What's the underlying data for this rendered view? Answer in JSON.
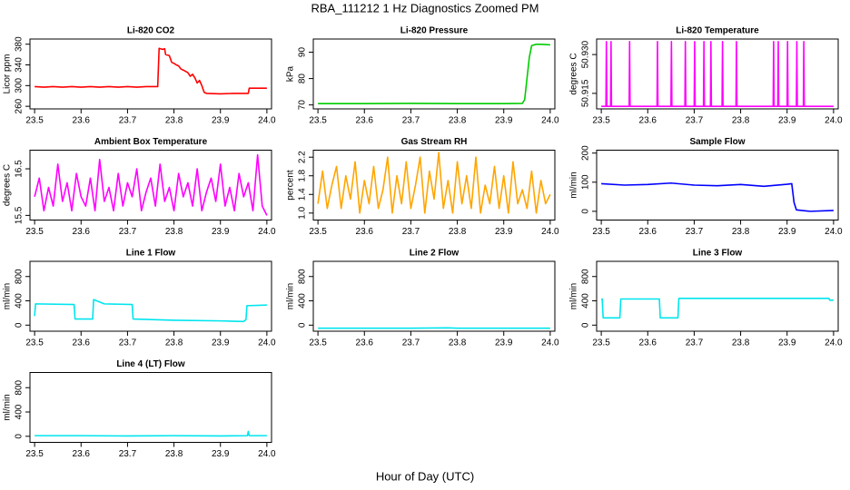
{
  "title": "RBA_111212  1 Hz Diagnostics Zoomed PM",
  "xlabel": "Hour of Day (UTC)",
  "chart_data": [
    {
      "type": "line",
      "title": "Li-820 CO2",
      "ylabel": "Licor ppm",
      "color": "#ff0000",
      "xlim": [
        23.49,
        24.01
      ],
      "xticks": [
        23.5,
        23.6,
        23.7,
        23.8,
        23.9,
        {
          "value": 24,
          "label": "24.0"
        }
      ],
      "ylim": [
        255,
        390
      ],
      "yticks": [
        260,
        300,
        340,
        380
      ],
      "x": [
        23.5,
        23.52,
        23.54,
        23.56,
        23.58,
        23.6,
        23.62,
        23.64,
        23.66,
        23.68,
        23.7,
        23.72,
        23.74,
        23.765,
        23.768,
        23.775,
        23.78,
        23.782,
        23.79,
        23.795,
        23.8,
        23.805,
        23.81,
        23.815,
        23.82,
        23.83,
        23.835,
        23.84,
        23.845,
        23.85,
        23.855,
        23.86,
        23.865,
        23.87,
        23.9,
        23.93,
        23.96,
        23.962,
        23.98,
        24.0
      ],
      "values": [
        298,
        297,
        298,
        297,
        298,
        297,
        298,
        297,
        298,
        297,
        298,
        297,
        298,
        298,
        372,
        370,
        371,
        360,
        358,
        345,
        343,
        340,
        338,
        332,
        330,
        325,
        318,
        322,
        315,
        305,
        310,
        300,
        287,
        285,
        284,
        285,
        285,
        295,
        295,
        295
      ]
    },
    {
      "type": "line",
      "title": "Li-820 Pressure",
      "ylabel": "kPa",
      "color": "#00cc00",
      "xlim": [
        23.49,
        24.01
      ],
      "xticks": [
        23.5,
        23.6,
        23.7,
        23.8,
        23.9,
        {
          "value": 24,
          "label": "24.0"
        }
      ],
      "ylim": [
        68.5,
        95
      ],
      "yticks": [
        70,
        80,
        90
      ],
      "x": [
        23.5,
        23.6,
        23.7,
        23.8,
        23.9,
        23.94,
        23.945,
        23.95,
        23.955,
        23.96,
        23.97,
        23.98,
        24.0
      ],
      "values": [
        70.5,
        70.5,
        70.6,
        70.5,
        70.5,
        70.6,
        72,
        80,
        88,
        92.5,
        93,
        93,
        92.8
      ]
    },
    {
      "type": "line",
      "title": "Li-820 Temperature",
      "ylabel": "degrees C",
      "color": "#ff00ff",
      "xlim": [
        23.49,
        24.01
      ],
      "xticks": [
        23.5,
        23.6,
        23.7,
        23.8,
        23.9,
        {
          "value": 24,
          "label": "24.0"
        }
      ],
      "ylim": [
        50.909,
        50.936
      ],
      "yticks": [
        50.915,
        {
          "value": 50.93,
          "label": "50.930"
        }
      ],
      "x": [
        23.5,
        23.51,
        23.511,
        23.512,
        23.52,
        23.521,
        23.522,
        23.56,
        23.561,
        23.562,
        23.62,
        23.621,
        23.622,
        23.65,
        23.651,
        23.652,
        23.68,
        23.681,
        23.682,
        23.7,
        23.701,
        23.702,
        23.72,
        23.721,
        23.722,
        23.735,
        23.736,
        23.737,
        23.76,
        23.761,
        23.762,
        23.79,
        23.791,
        23.792,
        23.87,
        23.871,
        23.872,
        23.88,
        23.881,
        23.882,
        23.9,
        23.901,
        23.902,
        23.92,
        23.921,
        23.922,
        23.935,
        23.936,
        23.937,
        24.0
      ],
      "values": [
        50.91,
        50.91,
        50.935,
        50.91,
        50.91,
        50.935,
        50.91,
        50.91,
        50.935,
        50.91,
        50.91,
        50.935,
        50.91,
        50.91,
        50.935,
        50.91,
        50.91,
        50.935,
        50.91,
        50.91,
        50.935,
        50.91,
        50.91,
        50.935,
        50.91,
        50.91,
        50.935,
        50.91,
        50.91,
        50.935,
        50.91,
        50.91,
        50.935,
        50.91,
        50.91,
        50.935,
        50.91,
        50.91,
        50.935,
        50.91,
        50.91,
        50.935,
        50.91,
        50.91,
        50.935,
        50.91,
        50.91,
        50.935,
        50.91,
        50.91
      ]
    },
    {
      "type": "line",
      "title": "Ambient Box Temperature",
      "ylabel": "degrees C",
      "color": "#ff00ff",
      "xlim": [
        23.49,
        24.01
      ],
      "xticks": [
        23.5,
        23.6,
        23.7,
        23.8,
        23.9,
        {
          "value": 24,
          "label": "24.0"
        }
      ],
      "ylim": [
        15.4,
        16.9
      ],
      "yticks": [
        15.5,
        16.5
      ],
      "x": [
        23.5,
        23.51,
        23.52,
        23.53,
        23.54,
        23.55,
        23.56,
        23.57,
        23.58,
        23.59,
        23.6,
        23.61,
        23.62,
        23.63,
        23.64,
        23.65,
        23.66,
        23.67,
        23.68,
        23.69,
        23.7,
        23.71,
        23.72,
        23.73,
        23.74,
        23.75,
        23.76,
        23.77,
        23.78,
        23.79,
        23.8,
        23.81,
        23.82,
        23.83,
        23.84,
        23.85,
        23.86,
        23.87,
        23.88,
        23.89,
        23.9,
        23.91,
        23.92,
        23.93,
        23.94,
        23.95,
        23.96,
        23.97,
        23.98,
        23.99,
        24.0
      ],
      "values": [
        15.9,
        16.3,
        15.6,
        16.1,
        15.7,
        16.6,
        15.8,
        16.2,
        15.6,
        16.4,
        15.9,
        15.7,
        16.3,
        15.6,
        16.7,
        15.8,
        16.1,
        15.6,
        16.4,
        15.7,
        16.2,
        15.9,
        16.5,
        15.6,
        16.0,
        16.3,
        15.7,
        16.6,
        15.8,
        16.1,
        15.6,
        16.4,
        15.9,
        16.2,
        15.7,
        16.5,
        15.6,
        16.0,
        16.3,
        15.8,
        16.6,
        15.7,
        16.1,
        15.6,
        16.4,
        15.9,
        16.2,
        15.6,
        16.8,
        15.7,
        15.5
      ]
    },
    {
      "type": "line",
      "title": "Gas Stream RH",
      "ylabel": "percent",
      "color": "#ffa500",
      "xlim": [
        23.49,
        24.01
      ],
      "xticks": [
        23.5,
        23.6,
        23.7,
        23.8,
        23.9,
        {
          "value": 24,
          "label": "24.0"
        }
      ],
      "ylim": [
        0.85,
        2.35
      ],
      "yticks": [
        {
          "value": 1,
          "label": "1.0"
        },
        1.4,
        1.8,
        2.2
      ],
      "x": [
        23.5,
        23.51,
        23.52,
        23.53,
        23.54,
        23.55,
        23.56,
        23.57,
        23.58,
        23.59,
        23.6,
        23.61,
        23.62,
        23.63,
        23.64,
        23.65,
        23.66,
        23.67,
        23.68,
        23.69,
        23.7,
        23.71,
        23.72,
        23.73,
        23.74,
        23.75,
        23.76,
        23.77,
        23.78,
        23.79,
        23.8,
        23.81,
        23.82,
        23.83,
        23.84,
        23.85,
        23.86,
        23.87,
        23.88,
        23.89,
        23.9,
        23.91,
        23.92,
        23.93,
        23.94,
        23.95,
        23.96,
        23.97,
        23.98,
        23.99,
        24.0
      ],
      "values": [
        1.2,
        1.9,
        1.1,
        1.6,
        2.0,
        1.1,
        1.8,
        1.3,
        2.1,
        1.0,
        1.7,
        1.2,
        2.0,
        1.1,
        1.5,
        2.2,
        1.0,
        1.8,
        1.2,
        2.1,
        1.1,
        1.6,
        2.2,
        1.0,
        1.9,
        1.3,
        2.3,
        1.1,
        1.7,
        1.0,
        2.1,
        1.2,
        1.8,
        1.1,
        2.2,
        1.0,
        1.6,
        1.2,
        2.0,
        1.1,
        1.8,
        1.0,
        2.1,
        1.2,
        1.5,
        1.1,
        1.9,
        1.0,
        1.7,
        1.2,
        1.4
      ]
    },
    {
      "type": "line",
      "title": "Sample Flow",
      "ylabel": "ml/min",
      "color": "#0000ff",
      "xlim": [
        23.49,
        24.01
      ],
      "xticks": [
        23.5,
        23.6,
        23.7,
        23.8,
        23.9,
        {
          "value": 24,
          "label": "24.0"
        }
      ],
      "ylim": [
        -30,
        210
      ],
      "yticks": [
        0,
        100,
        200
      ],
      "x": [
        23.5,
        23.55,
        23.6,
        23.65,
        23.7,
        23.75,
        23.8,
        23.85,
        23.9,
        23.91,
        23.915,
        23.92,
        23.95,
        24.0
      ],
      "values": [
        95,
        90,
        92,
        97,
        90,
        88,
        92,
        86,
        93,
        95,
        30,
        5,
        0,
        3
      ]
    },
    {
      "type": "line",
      "title": "Line 1 Flow",
      "ylabel": "ml/min",
      "color": "#00e5ee",
      "xlim": [
        23.49,
        24.01
      ],
      "xticks": [
        23.5,
        23.6,
        23.7,
        23.8,
        23.9,
        {
          "value": 24,
          "label": "24.0"
        }
      ],
      "ylim": [
        -100,
        1050
      ],
      "yticks": [
        0,
        400,
        800
      ],
      "x": [
        23.5,
        23.502,
        23.585,
        23.587,
        23.625,
        23.627,
        23.65,
        23.71,
        23.712,
        23.8,
        23.9,
        23.95,
        23.955,
        23.957,
        24.0
      ],
      "values": [
        150,
        350,
        340,
        100,
        100,
        420,
        350,
        340,
        100,
        80,
        70,
        60,
        90,
        320,
        330
      ]
    },
    {
      "type": "line",
      "title": "Line 2 Flow",
      "ylabel": "ml/min",
      "color": "#00e5ee",
      "xlim": [
        23.49,
        24.01
      ],
      "xticks": [
        23.5,
        23.6,
        23.7,
        23.8,
        23.9,
        {
          "value": 24,
          "label": "24.0"
        }
      ],
      "ylim": [
        -100,
        1050
      ],
      "yticks": [
        0,
        400,
        800
      ],
      "x": [
        23.5,
        23.7,
        23.78,
        23.8,
        24.0
      ],
      "values": [
        -50,
        -50,
        -45,
        -50,
        -50
      ]
    },
    {
      "type": "line",
      "title": "Line 3 Flow",
      "ylabel": "ml/min",
      "color": "#00e5ee",
      "xlim": [
        23.49,
        24.01
      ],
      "xticks": [
        23.5,
        23.6,
        23.7,
        23.8,
        23.9,
        {
          "value": 24,
          "label": "24.0"
        }
      ],
      "ylim": [
        -100,
        1050
      ],
      "yticks": [
        0,
        400,
        800
      ],
      "x": [
        23.5,
        23.502,
        23.504,
        23.54,
        23.542,
        23.625,
        23.627,
        23.665,
        23.667,
        23.8,
        23.99,
        23.992,
        24.0
      ],
      "values": [
        430,
        430,
        120,
        120,
        430,
        430,
        120,
        120,
        440,
        440,
        440,
        410,
        410
      ]
    },
    {
      "type": "line",
      "title": "Line 4 (LT) Flow",
      "ylabel": "ml/min",
      "color": "#00e5ee",
      "xlim": [
        23.49,
        24.01
      ],
      "xticks": [
        23.5,
        23.6,
        23.7,
        23.8,
        23.9,
        {
          "value": 24,
          "label": "24.0"
        }
      ],
      "ylim": [
        -100,
        1050
      ],
      "yticks": [
        0,
        400,
        800
      ],
      "x": [
        23.5,
        23.6,
        23.7,
        23.8,
        23.9,
        23.958,
        23.96,
        23.962,
        24.0
      ],
      "values": [
        10,
        10,
        5,
        10,
        5,
        10,
        80,
        10,
        10
      ]
    }
  ]
}
